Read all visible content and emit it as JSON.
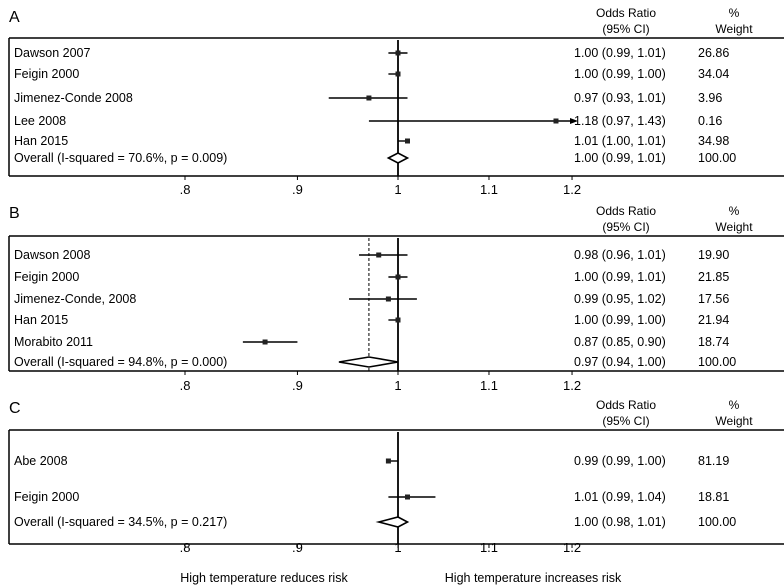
{
  "chart_data": [
    {
      "type": "forest",
      "panel_label": "A",
      "header": {
        "or_line1": "Odds Ratio",
        "or_line2": "(95% CI)",
        "w_line1": "%",
        "w_line2": "Weight"
      },
      "x_scale": "log",
      "xlim": [
        0.8,
        1.25
      ],
      "ticks": [
        {
          "value": 0.8,
          "label": ".8"
        },
        {
          "value": 0.9,
          "label": ".9"
        },
        {
          "value": 1.0,
          "label": "1"
        },
        {
          "value": 1.1,
          "label": "1.1"
        },
        {
          "value": 1.2,
          "label": "1.2"
        }
      ],
      "null_line": 1.0,
      "studies": [
        {
          "name": "Dawson 2007",
          "or": 1.0,
          "lo": 0.99,
          "hi": 1.01,
          "ci_text": "1.00 (0.99, 1.01)",
          "weight": "26.86",
          "arrow_right": false
        },
        {
          "name": "Feigin 2000",
          "or": 1.0,
          "lo": 0.99,
          "hi": 1.0,
          "ci_text": "1.00 (0.99, 1.00)",
          "weight": "34.04",
          "arrow_right": false
        },
        {
          "name": "Jimenez-Conde 2008",
          "or": 0.97,
          "lo": 0.93,
          "hi": 1.01,
          "ci_text": "0.97 (0.93, 1.01)",
          "weight": "3.96",
          "arrow_right": false
        },
        {
          "name": "Lee 2008",
          "or": 1.18,
          "lo": 0.97,
          "hi": 1.43,
          "ci_text": "1.18 (0.97, 1.43)",
          "weight": "0.16",
          "arrow_right": true
        },
        {
          "name": "Han 2015",
          "or": 1.01,
          "lo": 1.0,
          "hi": 1.01,
          "ci_text": "1.01 (1.00, 1.01)",
          "weight": "34.98",
          "arrow_right": false
        }
      ],
      "overall": {
        "name": "Overall  (I-squared = 70.6%, p = 0.009)",
        "or": 1.0,
        "lo": 0.99,
        "hi": 1.01,
        "ci_text": "1.00 (0.99, 1.01)",
        "weight": "100.00"
      }
    },
    {
      "type": "forest",
      "panel_label": "B",
      "header": {
        "or_line1": "Odds Ratio",
        "or_line2": "(95% CI)",
        "w_line1": "%",
        "w_line2": "Weight"
      },
      "x_scale": "log",
      "xlim": [
        0.8,
        1.25
      ],
      "ticks": [
        {
          "value": 0.8,
          "label": ".8"
        },
        {
          "value": 0.9,
          "label": ".9"
        },
        {
          "value": 1.0,
          "label": "1"
        },
        {
          "value": 1.1,
          "label": "1.1"
        },
        {
          "value": 1.2,
          "label": "1.2"
        }
      ],
      "null_line": 1.0,
      "studies": [
        {
          "name": "Dawson 2008",
          "or": 0.98,
          "lo": 0.96,
          "hi": 1.01,
          "ci_text": "0.98 (0.96, 1.01)",
          "weight": "19.90",
          "arrow_right": false
        },
        {
          "name": "Feigin 2000",
          "or": 1.0,
          "lo": 0.99,
          "hi": 1.01,
          "ci_text": "1.00 (0.99, 1.01)",
          "weight": "21.85",
          "arrow_right": false
        },
        {
          "name": "Jimenez-Conde, 2008",
          "or": 0.99,
          "lo": 0.95,
          "hi": 1.02,
          "ci_text": "0.99 (0.95, 1.02)",
          "weight": "17.56",
          "arrow_right": false
        },
        {
          "name": "Han 2015",
          "or": 1.0,
          "lo": 0.99,
          "hi": 1.0,
          "ci_text": "1.00 (0.99, 1.00)",
          "weight": "21.94",
          "arrow_right": false
        },
        {
          "name": "Morabito 2011",
          "or": 0.87,
          "lo": 0.85,
          "hi": 0.9,
          "ci_text": "0.87 (0.85, 0.90)",
          "weight": "18.74",
          "arrow_right": false
        }
      ],
      "overall": {
        "name": "Overall  (I-squared = 94.8%, p = 0.000)",
        "or": 0.97,
        "lo": 0.94,
        "hi": 1.0,
        "ci_text": "0.97 (0.94, 1.00)",
        "weight": "100.00"
      }
    },
    {
      "type": "forest",
      "panel_label": "C",
      "header": {
        "or_line1": "Odds Ratio",
        "or_line2": "(95% CI)",
        "w_line1": "%",
        "w_line2": "Weight"
      },
      "x_scale": "log",
      "xlim": [
        0.8,
        1.25
      ],
      "ticks": [
        {
          "value": 0.8,
          "label": ".8"
        },
        {
          "value": 0.9,
          "label": ".9"
        },
        {
          "value": 1.0,
          "label": "1"
        },
        {
          "value": 1.1,
          "label": "1.1"
        },
        {
          "value": 1.2,
          "label": "1.2"
        }
      ],
      "null_line": 1.0,
      "studies": [
        {
          "name": "Abe 2008",
          "or": 0.99,
          "lo": 0.99,
          "hi": 1.0,
          "ci_text": "0.99 (0.99, 1.00)",
          "weight": "81.19",
          "arrow_right": false
        },
        {
          "name": "Feigin 2000",
          "or": 1.01,
          "lo": 0.99,
          "hi": 1.04,
          "ci_text": "1.01 (0.99, 1.04)",
          "weight": "18.81",
          "arrow_right": false
        }
      ],
      "overall": {
        "name": "Overall  (I-squared = 34.5%, p = 0.217)",
        "or": 1.0,
        "lo": 0.98,
        "hi": 1.01,
        "ci_text": "1.00 (0.98, 1.01)",
        "weight": "100.00"
      },
      "footer_left": "High temperature reduces risk",
      "footer_right": "High temperature increases risk"
    }
  ]
}
